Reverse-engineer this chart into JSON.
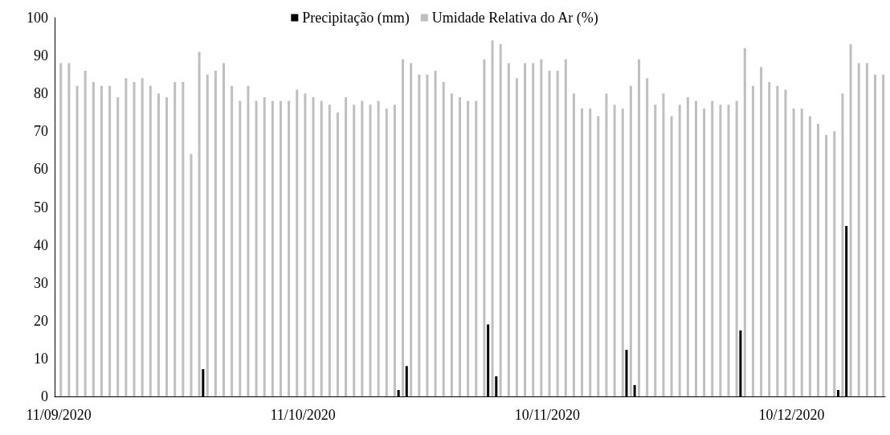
{
  "chart_data": {
    "type": "bar",
    "categories": [
      "11/09/2020",
      null,
      null,
      null,
      null,
      null,
      null,
      null,
      null,
      null,
      null,
      null,
      null,
      null,
      null,
      null,
      null,
      null,
      null,
      null,
      null,
      null,
      null,
      null,
      null,
      null,
      null,
      null,
      null,
      null,
      "11/10/2020",
      null,
      null,
      null,
      null,
      null,
      null,
      null,
      null,
      null,
      null,
      null,
      null,
      null,
      null,
      null,
      null,
      null,
      null,
      null,
      null,
      null,
      null,
      null,
      null,
      null,
      null,
      null,
      null,
      null,
      "10/11/2020",
      null,
      null,
      null,
      null,
      null,
      null,
      null,
      null,
      null,
      null,
      null,
      null,
      null,
      null,
      null,
      null,
      null,
      null,
      null,
      null,
      null,
      null,
      null,
      null,
      null,
      null,
      null,
      null,
      null,
      "10/12/2020",
      null,
      null,
      null,
      null,
      null,
      null,
      null,
      null,
      null,
      null,
      null
    ],
    "series": [
      {
        "name": "Precipitação (mm)",
        "color": "#000000",
        "values": [
          null,
          null,
          null,
          null,
          null,
          null,
          null,
          null,
          null,
          null,
          null,
          null,
          null,
          null,
          null,
          null,
          null,
          null,
          7.2,
          null,
          null,
          null,
          null,
          null,
          null,
          null,
          null,
          null,
          null,
          null,
          null,
          null,
          null,
          null,
          null,
          null,
          null,
          null,
          null,
          null,
          null,
          null,
          1.7,
          8,
          null,
          null,
          null,
          null,
          null,
          null,
          null,
          null,
          null,
          19,
          5.3,
          null,
          null,
          null,
          null,
          null,
          null,
          null,
          null,
          null,
          null,
          null,
          null,
          null,
          null,
          null,
          12.3,
          3,
          null,
          null,
          null,
          null,
          null,
          null,
          null,
          null,
          null,
          null,
          null,
          null,
          17.4,
          null,
          null,
          null,
          null,
          null,
          null,
          null,
          null,
          null,
          null,
          null,
          1.7,
          45,
          null,
          null,
          null,
          null
        ]
      },
      {
        "name": "Umidade Relativa do Ar (%)",
        "color": "#bfbfbf",
        "values": [
          88,
          88,
          82,
          86,
          83,
          82,
          82,
          79,
          84,
          83,
          84,
          82,
          80,
          79,
          83,
          83,
          64,
          91,
          85,
          86,
          88,
          82,
          78,
          82,
          78,
          79,
          78,
          78,
          78,
          81,
          80,
          79,
          78,
          77,
          75,
          79,
          77,
          78,
          77,
          78,
          76,
          77,
          89,
          88,
          85,
          85,
          86,
          83,
          80,
          79,
          78,
          78,
          89,
          94,
          93,
          88,
          84,
          88,
          88,
          89,
          86,
          86,
          89,
          80,
          76,
          76,
          74,
          80,
          77,
          76,
          82,
          89,
          84,
          77,
          80,
          74,
          77,
          79,
          78,
          76,
          78,
          77,
          77,
          78,
          92,
          82,
          87,
          83,
          82,
          81,
          76,
          76,
          74,
          72,
          69,
          70,
          80,
          93,
          88,
          88,
          85,
          85
        ]
      }
    ],
    "ylim": [
      0,
      100
    ],
    "yticks": [
      0,
      10,
      20,
      30,
      40,
      50,
      60,
      70,
      80,
      90,
      100
    ],
    "grid": false,
    "legend": "top"
  }
}
